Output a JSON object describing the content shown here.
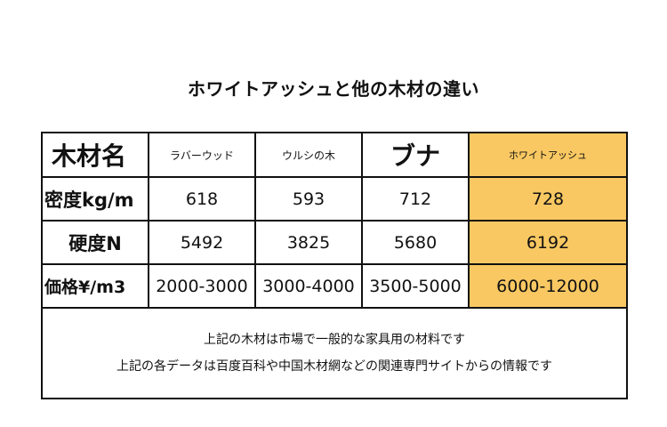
{
  "title": "ホワイトアッシュと他の木材の違い",
  "table": {
    "corner": "木材名",
    "columns": [
      "ラバーウッド",
      "ウルシの木",
      "ブナ",
      "ホワイトアッシュ"
    ],
    "rows": [
      {
        "label": "密度kg/m",
        "values": [
          "618",
          "593",
          "712",
          "728"
        ]
      },
      {
        "label": "硬度N",
        "values": [
          "5492",
          "3825",
          "5680",
          "6192"
        ]
      },
      {
        "label": "価格¥/m3",
        "values": [
          "2000-3000",
          "3000-4000",
          "3500-5000",
          "6000-12000"
        ]
      }
    ],
    "highlight_color": "#f9c862"
  },
  "notes": [
    "上記の木材は市場で一般的な家具用の材料です",
    "上記の各データは百度百科や中国木材網などの関連専門サイトからの情報です"
  ]
}
